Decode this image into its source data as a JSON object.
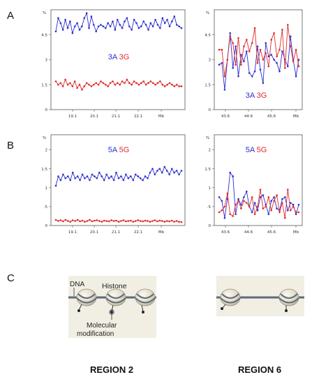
{
  "panels": {
    "a": "A",
    "b": "B",
    "c": "C"
  },
  "chart_data": [
    {
      "type": "line",
      "legend": {
        "first": "3A",
        "second": "3G",
        "placement": "center"
      },
      "y_unit": "%",
      "y_ticks": [
        "0",
        "1.5",
        "3",
        "4.5"
      ],
      "ylim": [
        0,
        6
      ],
      "x_ticks": [
        "19.1",
        "20.1",
        "21.1",
        "22.1",
        "Mb"
      ],
      "series": [
        {
          "color": "#2b2fd0",
          "values": [
            4.7,
            5.5,
            5.2,
            4.8,
            5.4,
            4.9,
            5.3,
            4.6,
            5.0,
            5.2,
            4.8,
            5.0,
            5.5,
            5.8,
            4.9,
            5.6,
            5.1,
            4.7,
            5.0,
            5.1,
            5.0,
            4.9,
            5.2,
            5.0,
            5.3,
            4.8,
            5.4,
            5.1,
            4.9,
            5.3,
            5.5,
            5.0,
            4.8,
            5.4,
            5.2,
            4.9,
            5.0,
            5.3,
            5.1,
            4.8,
            5.2,
            5.0,
            5.4,
            5.1,
            4.9,
            5.5,
            5.2,
            5.4,
            5.0,
            5.3,
            5.6,
            5.1,
            5.0,
            4.9
          ]
        },
        {
          "color": "#e02a2a",
          "values": [
            1.7,
            1.5,
            1.6,
            1.4,
            1.8,
            1.5,
            1.6,
            1.4,
            1.7,
            1.3,
            1.5,
            1.2,
            1.4,
            1.6,
            1.5,
            1.4,
            1.5,
            1.6,
            1.5,
            1.7,
            1.6,
            1.5,
            1.4,
            1.6,
            1.7,
            1.5,
            1.6,
            1.5,
            1.7,
            1.6,
            1.8,
            1.6,
            1.5,
            1.7,
            1.6,
            1.5,
            1.6,
            1.7,
            1.5,
            1.6,
            1.7,
            1.6,
            1.5,
            1.6,
            1.7,
            1.5,
            1.4,
            1.5,
            1.6,
            1.5,
            1.4,
            1.5,
            1.4,
            1.4
          ]
        }
      ]
    },
    {
      "type": "line",
      "legend": {
        "first": "3A",
        "second": "3G",
        "placement": "bottom-center"
      },
      "y_unit": "%",
      "y_ticks": [
        "0",
        "1.5",
        "3",
        "4.5"
      ],
      "ylim": [
        0,
        6
      ],
      "x_ticks": [
        "43.6",
        "44.6",
        "45.6",
        "Mb"
      ],
      "series": [
        {
          "color": "#2b2fd0",
          "values": [
            2.7,
            2.8,
            1.2,
            3.0,
            4.6,
            2.5,
            3.8,
            2.0,
            3.3,
            2.9,
            3.5,
            2.2,
            2.0,
            2.3,
            3.8,
            2.4,
            1.6,
            4.0,
            3.2,
            3.3,
            3.0,
            2.8,
            2.3,
            3.5,
            3.0,
            2.6,
            4.4,
            3.0,
            2.0,
            3.0
          ]
        },
        {
          "color": "#e02a2a",
          "values": [
            3.6,
            3.6,
            2.0,
            3.0,
            4.4,
            4.0,
            2.7,
            4.3,
            2.7,
            3.8,
            4.2,
            3.5,
            4.0,
            4.9,
            2.8,
            3.6,
            3.0,
            3.4,
            2.6,
            4.2,
            4.6,
            3.2,
            3.6,
            4.8,
            2.5,
            5.1,
            3.8,
            2.9,
            3.6,
            2.6
          ]
        }
      ]
    },
    {
      "type": "line",
      "legend": {
        "first": "5A",
        "second": "5G",
        "placement": "top-center"
      },
      "y_unit": "%",
      "y_ticks": [
        "0",
        ".5",
        "1",
        "1.5",
        "2"
      ],
      "ylim": [
        0,
        2.4
      ],
      "x_ticks": [
        "19.1",
        "20.1",
        "21.1",
        "22.1",
        "Mb"
      ],
      "series": [
        {
          "color": "#2b2fd0",
          "values": [
            1.05,
            1.3,
            1.2,
            1.35,
            1.25,
            1.3,
            1.2,
            1.4,
            1.25,
            1.3,
            1.2,
            1.35,
            1.25,
            1.3,
            1.2,
            1.35,
            1.3,
            1.25,
            1.4,
            1.3,
            1.2,
            1.35,
            1.25,
            1.3,
            1.2,
            1.4,
            1.25,
            1.3,
            1.2,
            1.35,
            1.25,
            1.3,
            1.2,
            1.35,
            1.3,
            1.25,
            1.2,
            1.3,
            1.25,
            1.4,
            1.5,
            1.35,
            1.45,
            1.5,
            1.4,
            1.55,
            1.45,
            1.35,
            1.5,
            1.4,
            1.45,
            1.35,
            1.45
          ]
        },
        {
          "color": "#e02a2a",
          "values": [
            0.15,
            0.12,
            0.14,
            0.11,
            0.15,
            0.12,
            0.1,
            0.14,
            0.12,
            0.15,
            0.11,
            0.13,
            0.1,
            0.12,
            0.15,
            0.11,
            0.13,
            0.14,
            0.12,
            0.1,
            0.13,
            0.12,
            0.11,
            0.14,
            0.12,
            0.13,
            0.1,
            0.12,
            0.14,
            0.11,
            0.12,
            0.13,
            0.1,
            0.12,
            0.14,
            0.12,
            0.11,
            0.13,
            0.12,
            0.1,
            0.12,
            0.14,
            0.11,
            0.13,
            0.12,
            0.1,
            0.12,
            0.11,
            0.13,
            0.1,
            0.12,
            0.1,
            0.09
          ]
        }
      ]
    },
    {
      "type": "line",
      "legend": {
        "first": "5A",
        "second": "5G",
        "placement": "top-center"
      },
      "y_unit": "%",
      "y_ticks": [
        "0",
        ".5",
        "1",
        "1.5",
        "2"
      ],
      "ylim": [
        0,
        2.4
      ],
      "x_ticks": [
        "43.6",
        "44.6",
        "45.6",
        "Mb"
      ],
      "series": [
        {
          "color": "#2b2fd0",
          "values": [
            0.75,
            0.65,
            0.2,
            0.7,
            1.4,
            1.3,
            0.3,
            0.7,
            0.55,
            0.75,
            0.9,
            0.5,
            0.35,
            0.6,
            0.4,
            0.75,
            0.8,
            0.55,
            0.3,
            0.65,
            0.75,
            0.45,
            0.4,
            0.7,
            0.75,
            0.4,
            0.6,
            0.55,
            0.3,
            0.55
          ]
        },
        {
          "color": "#e02a2a",
          "values": [
            0.35,
            0.4,
            0.5,
            0.85,
            0.3,
            0.25,
            0.55,
            0.65,
            0.45,
            0.65,
            0.6,
            0.5,
            0.75,
            0.3,
            0.5,
            0.95,
            0.45,
            0.5,
            0.75,
            0.4,
            0.65,
            0.8,
            0.35,
            0.6,
            0.2,
            0.95,
            0.4,
            0.5,
            0.35,
            0.35
          ]
        }
      ]
    }
  ],
  "diagram": {
    "dna_label": "DNA",
    "histone_label": "Histone",
    "modification_label_1": "Molecular",
    "modification_label_2": "modification"
  },
  "regions": {
    "left": "REGION 2",
    "right": "REGION 6"
  }
}
